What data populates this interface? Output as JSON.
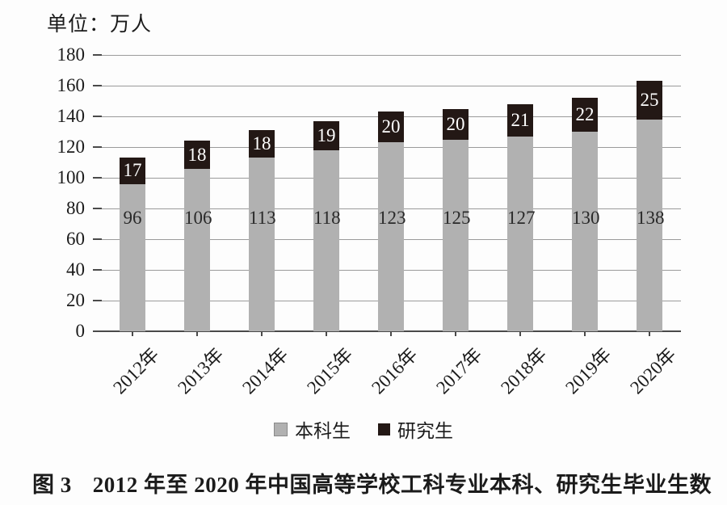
{
  "unit_label": "单位：万人",
  "chart_data": {
    "type": "bar",
    "stacked": true,
    "title": "",
    "ylabel": "单位：万人",
    "xlabel": "",
    "ylim": [
      0,
      180
    ],
    "ytick_step": 20,
    "grid": true,
    "legend_position": "bottom",
    "categories": [
      "2012年",
      "2013年",
      "2014年",
      "2015年",
      "2016年",
      "2017年",
      "2018年",
      "2019年",
      "2020年"
    ],
    "series": [
      {
        "name": "本科生",
        "color": "#b1b1b1",
        "label_color": "#2a2a2a",
        "values": [
          96,
          106,
          113,
          118,
          123,
          125,
          127,
          130,
          138
        ]
      },
      {
        "name": "研究生",
        "color": "#231815",
        "label_color": "#ffffff",
        "values": [
          17,
          18,
          18,
          19,
          20,
          20,
          21,
          22,
          25
        ]
      }
    ]
  },
  "legend": {
    "items": [
      {
        "label": "本科生",
        "color": "#b1b1b1"
      },
      {
        "label": "研究生",
        "color": "#231815"
      }
    ]
  },
  "caption": {
    "figure_no": "图 3",
    "text": "2012 年至 2020 年中国高等学校工科专业本科、研究生毕业生数"
  },
  "colors": {
    "background": "#fdfdfd",
    "gridline": "#9b9b9b",
    "axis": "#4a4a4a",
    "undergrad_bar": "#b1b1b1",
    "graduate_bar": "#231815",
    "text": "#1b1b1b"
  }
}
